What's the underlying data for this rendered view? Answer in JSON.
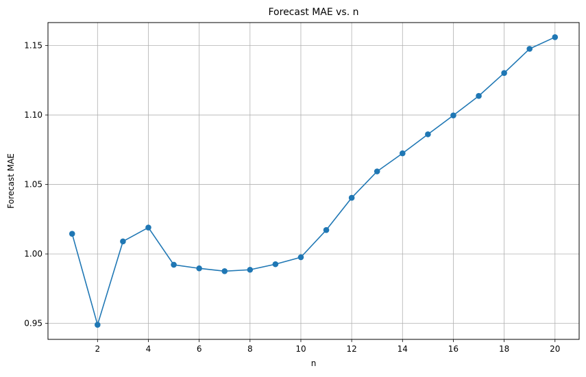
{
  "chart_data": {
    "type": "line",
    "title": "Forecast MAE vs. n",
    "xlabel": "n",
    "ylabel": "Forecast MAE",
    "xlim": [
      0.05,
      20.95
    ],
    "ylim": [
      0.9385,
      1.1665
    ],
    "xticks": [
      2,
      4,
      6,
      8,
      10,
      12,
      14,
      16,
      18,
      20
    ],
    "xtick_labels": [
      "2",
      "4",
      "6",
      "8",
      "10",
      "12",
      "14",
      "16",
      "18",
      "20"
    ],
    "yticks": [
      0.95,
      1.0,
      1.05,
      1.1,
      1.15
    ],
    "ytick_labels": [
      "0.95",
      "1.00",
      "1.05",
      "1.10",
      "1.15"
    ],
    "grid": true,
    "series": [
      {
        "color": "#1f77b4",
        "marker": "circle",
        "x": [
          1,
          2,
          3,
          4,
          5,
          6,
          7,
          8,
          9,
          10,
          11,
          12,
          13,
          14,
          15,
          16,
          17,
          18,
          19,
          20
        ],
        "y": [
          1.0145,
          0.949,
          1.009,
          1.019,
          0.9922,
          0.9896,
          0.9876,
          0.9886,
          0.9926,
          0.9976,
          1.0172,
          1.0404,
          1.0594,
          1.0724,
          1.0861,
          1.0997,
          1.1137,
          1.1302,
          1.1476,
          1.156
        ]
      }
    ]
  }
}
